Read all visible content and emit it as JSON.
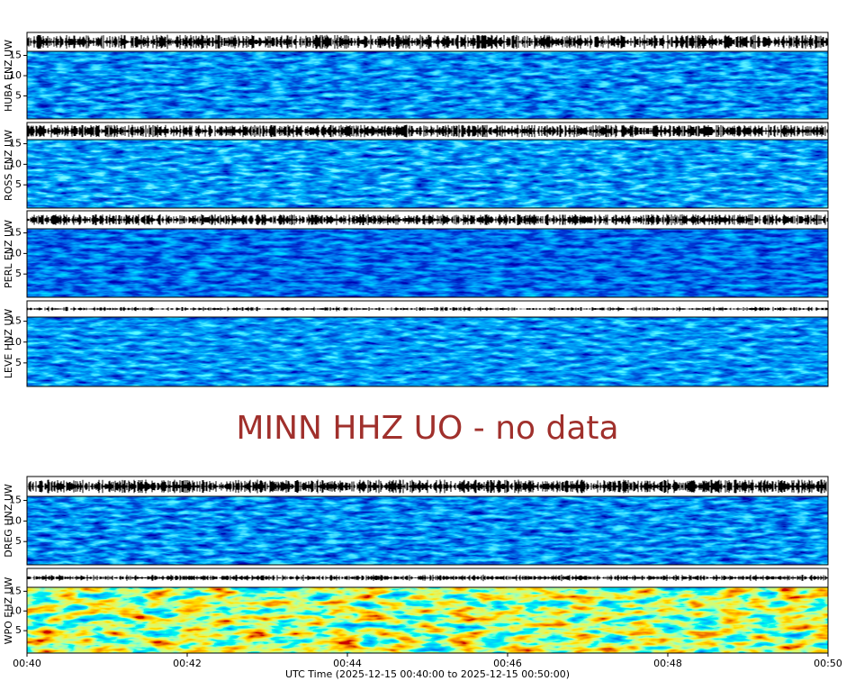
{
  "panels": [
    {
      "label": "HUBA ENZ UW",
      "yticks": [
        5,
        10,
        15
      ]
    },
    {
      "label": "ROSS ENZ UW",
      "yticks": [
        5,
        10,
        15
      ]
    },
    {
      "label": "PERL ENZ UW",
      "yticks": [
        5,
        10,
        15
      ]
    },
    {
      "label": "LEVE HNZ UW",
      "yticks": [
        5,
        10,
        15
      ]
    },
    {
      "label": "DREG HNZ UW",
      "yticks": [
        5,
        10,
        15
      ]
    },
    {
      "label": "WPO EHZ UW",
      "yticks": [
        5,
        10,
        15
      ]
    }
  ],
  "no_data_message": "MINN HHZ UO - no data",
  "xticks": [
    "00:40",
    "00:42",
    "00:44",
    "00:46",
    "00:48",
    "00:50"
  ],
  "xlabel": "UTC Time (2025-12-15 00:40:00 to 2025-12-15 00:50:00)"
}
